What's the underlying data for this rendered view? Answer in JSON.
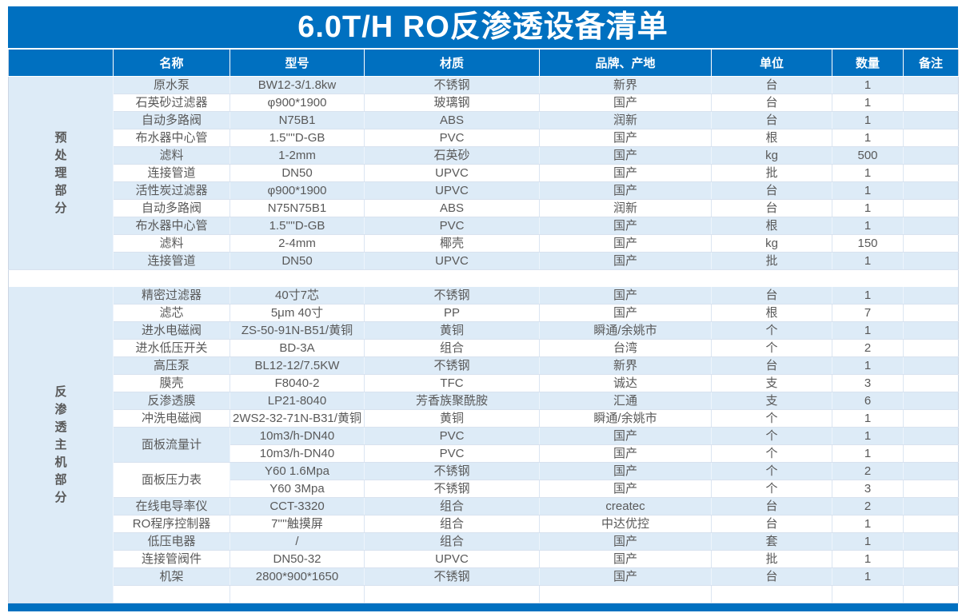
{
  "title": "6.0T/H RO反渗透设备清单",
  "colors": {
    "accent": "#0070C0",
    "row_alt": "#DDEBF7",
    "text": "#595959"
  },
  "table": {
    "columns": [
      "名称",
      "型号",
      "材质",
      "品牌、产地",
      "单位",
      "数量",
      "备注"
    ],
    "sections": [
      {
        "group_label": "预处理部分",
        "group_chars": [
          "预",
          "处",
          "理",
          "部",
          "分"
        ],
        "separator_after": true,
        "rows": [
          {
            "name": "原水泵",
            "model": "BW12-3/1.8kw",
            "material": "不锈钢",
            "brand": "新界",
            "unit": "台",
            "qty": "1",
            "remark": ""
          },
          {
            "name": "石英砂过滤器",
            "model": "φ900*1900",
            "material": "玻璃钢",
            "brand": "国产",
            "unit": "台",
            "qty": "1",
            "remark": ""
          },
          {
            "name": "自动多路阀",
            "model": "N75B1",
            "material": "ABS",
            "brand": "润新",
            "unit": "台",
            "qty": "1",
            "remark": ""
          },
          {
            "name": "布水器中心管",
            "model": "1.5''''D-GB",
            "material": "PVC",
            "brand": "国产",
            "unit": "根",
            "qty": "1",
            "remark": ""
          },
          {
            "name": "滤料",
            "model": "1-2mm",
            "material": "石英砂",
            "brand": "国产",
            "unit": "kg",
            "qty": "500",
            "remark": ""
          },
          {
            "name": "连接管道",
            "model": "DN50",
            "material": "UPVC",
            "brand": "国产",
            "unit": "批",
            "qty": "1",
            "remark": ""
          },
          {
            "name": "活性炭过滤器",
            "model": "φ900*1900",
            "material": "UPVC",
            "brand": "国产",
            "unit": "台",
            "qty": "1",
            "remark": ""
          },
          {
            "name": "自动多路阀",
            "model": "N75N75B1",
            "material": "ABS",
            "brand": "润新",
            "unit": "台",
            "qty": "1",
            "remark": ""
          },
          {
            "name": "布水器中心管",
            "model": "1.5''''D-GB",
            "material": "PVC",
            "brand": "国产",
            "unit": "根",
            "qty": "1",
            "remark": ""
          },
          {
            "name": "滤料",
            "model": "2-4mm",
            "material": "椰壳",
            "brand": "国产",
            "unit": "kg",
            "qty": "150",
            "remark": ""
          },
          {
            "name": "连接管道",
            "model": "DN50",
            "material": "UPVC",
            "brand": "国产",
            "unit": "批",
            "qty": "1",
            "remark": ""
          }
        ]
      },
      {
        "group_label": "反渗透主机部分",
        "group_chars": [
          "反",
          "渗",
          "透",
          "主",
          "机",
          "部",
          "分"
        ],
        "separator_after": false,
        "rows": [
          {
            "name": "精密过滤器",
            "model": "40寸7芯",
            "material": "不锈钢",
            "brand": "国产",
            "unit": "台",
            "qty": "1",
            "remark": ""
          },
          {
            "name": "滤芯",
            "model": "5μm 40寸",
            "material": "PP",
            "brand": "国产",
            "unit": "根",
            "qty": "7",
            "remark": ""
          },
          {
            "name": "进水电磁阀",
            "model": "ZS-50-91N-B51/黄铜",
            "material": "黄铜",
            "brand": "瞬通/余姚市",
            "unit": "个",
            "qty": "1",
            "remark": ""
          },
          {
            "name": "进水低压开关",
            "model": "BD-3A",
            "material": "组合",
            "brand": "台湾",
            "unit": "个",
            "qty": "2",
            "remark": ""
          },
          {
            "name": "高压泵",
            "model": "BL12-12/7.5KW",
            "material": "不锈钢",
            "brand": "新界",
            "unit": "台",
            "qty": "1",
            "remark": ""
          },
          {
            "name": "膜壳",
            "model": "F8040-2",
            "material": "TFC",
            "brand": "诚达",
            "unit": "支",
            "qty": "3",
            "remark": ""
          },
          {
            "name": "反渗透膜",
            "model": "LP21-8040",
            "material": "芳香族聚酰胺",
            "brand": "汇通",
            "unit": "支",
            "qty": "6",
            "remark": ""
          },
          {
            "name": "冲洗电磁阀",
            "model": "2WS2-32-71N-B31/黄铜",
            "material": "黄铜",
            "brand": "瞬通/余姚市",
            "unit": "个",
            "qty": "1",
            "remark": ""
          },
          {
            "name": "面板流量计",
            "name_rowspan": 2,
            "name_bg": "light",
            "model": "10m3/h-DN40",
            "material": "PVC",
            "brand": "国产",
            "unit": "个",
            "qty": "1",
            "remark": ""
          },
          {
            "name_merged": true,
            "model": "10m3/h-DN40",
            "material": "PVC",
            "brand": "国产",
            "unit": "个",
            "qty": "1",
            "remark": ""
          },
          {
            "name": "面板压力表",
            "name_rowspan": 2,
            "name_bg": "white",
            "model": "Y60 1.6Mpa",
            "material": "不锈钢",
            "brand": "国产",
            "unit": "个",
            "qty": "2",
            "remark": ""
          },
          {
            "name_merged": true,
            "model": "Y60 3Mpa",
            "material": "不锈钢",
            "brand": "国产",
            "unit": "个",
            "qty": "3",
            "remark": ""
          },
          {
            "name": "在线电导率仪",
            "model": "CCT-3320",
            "material": "组合",
            "brand": "createc",
            "unit": "台",
            "qty": "2",
            "remark": ""
          },
          {
            "name": "RO程序控制器",
            "model": "7''''触摸屏",
            "material": "组合",
            "brand": "中达优控",
            "unit": "台",
            "qty": "1",
            "remark": ""
          },
          {
            "name": "低压电器",
            "model": "/",
            "material": "组合",
            "brand": "国产",
            "unit": "套",
            "qty": "1",
            "remark": ""
          },
          {
            "name": "连接管阀件",
            "model": "DN50-32",
            "material": "UPVC",
            "brand": "国产",
            "unit": "批",
            "qty": "1",
            "remark": ""
          },
          {
            "name": "机架",
            "model": "2800*900*1650",
            "material": "不锈钢",
            "brand": "国产",
            "unit": "台",
            "qty": "1",
            "remark": ""
          },
          {
            "name": "",
            "model": "",
            "material": "",
            "brand": "",
            "unit": "",
            "qty": "",
            "remark": ""
          }
        ]
      }
    ]
  }
}
